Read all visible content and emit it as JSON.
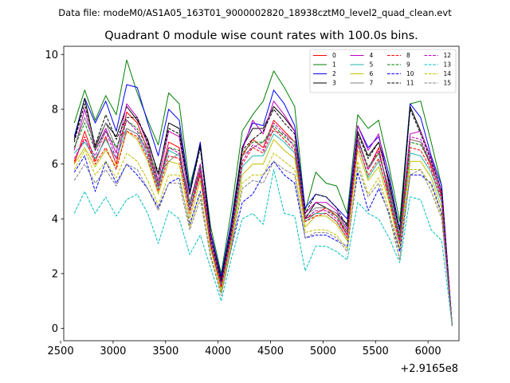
{
  "subtitle": "Data file: modeM0/AS1A05_163T01_9000002820_18938cztM0_level2_quad_clean.evt",
  "chart_data": {
    "type": "line",
    "title": "Quadrant 0 module wise count rates with 100.0s bins.",
    "xlabel": "",
    "ylabel": "",
    "x_offset_label": "+2.9165e8",
    "xlim": [
      2530,
      6295
    ],
    "ylim": [
      -0.45,
      10.3
    ],
    "xticks": [
      2500,
      3000,
      3500,
      4000,
      4500,
      5000,
      5500,
      6000
    ],
    "yticks": [
      0,
      2,
      4,
      6,
      8,
      10
    ],
    "legend_location": "upper-right",
    "legend_columns": 4,
    "x": [
      2630,
      2730,
      2830,
      2930,
      3030,
      3130,
      3230,
      3330,
      3430,
      3530,
      3630,
      3730,
      3830,
      3930,
      4030,
      4130,
      4230,
      4330,
      4430,
      4530,
      4630,
      4730,
      4830,
      4930,
      5030,
      5130,
      5230,
      5330,
      5430,
      5530,
      5630,
      5730,
      5830,
      5930,
      6030,
      6130,
      6230
    ],
    "series": [
      {
        "name": "0",
        "color": "#ff0000",
        "dash": "solid",
        "values": [
          6.0,
          7.2,
          6.1,
          7.0,
          6.0,
          7.9,
          7.5,
          6.5,
          5.2,
          6.8,
          6.6,
          4.3,
          5.7,
          3.2,
          1.6,
          3.5,
          6.3,
          6.9,
          6.6,
          7.6,
          7.2,
          6.8,
          4.0,
          4.2,
          4.4,
          4.1,
          3.4,
          6.9,
          5.8,
          6.6,
          4.8,
          3.2,
          6.9,
          6.8,
          5.9,
          4.9,
          0.1
        ]
      },
      {
        "name": "1",
        "color": "#008000",
        "dash": "solid",
        "values": [
          7.5,
          8.7,
          7.6,
          8.5,
          7.8,
          9.8,
          8.6,
          7.6,
          6.7,
          8.6,
          8.2,
          5.2,
          6.7,
          3.7,
          2.0,
          4.4,
          7.2,
          7.8,
          8.3,
          9.4,
          8.8,
          8.1,
          4.3,
          5.7,
          5.3,
          5.2,
          4.2,
          7.8,
          7.3,
          7.6,
          5.9,
          3.9,
          8.2,
          8.3,
          6.8,
          5.2,
          0.1
        ]
      },
      {
        "name": "2",
        "color": "#0000ff",
        "dash": "solid",
        "values": [
          7.0,
          8.4,
          7.5,
          8.3,
          7.2,
          8.9,
          8.8,
          7.5,
          6.3,
          8.0,
          7.6,
          5.0,
          6.8,
          3.5,
          1.9,
          4.0,
          6.6,
          7.5,
          7.4,
          8.7,
          8.2,
          7.4,
          4.4,
          4.9,
          4.8,
          4.4,
          4.0,
          7.4,
          6.6,
          7.0,
          5.6,
          3.6,
          8.2,
          7.7,
          6.3,
          5.2,
          0.1
        ]
      },
      {
        "name": "3",
        "color": "#000000",
        "dash": "solid",
        "values": [
          6.9,
          8.4,
          6.6,
          7.5,
          7.0,
          8.1,
          7.6,
          6.9,
          5.6,
          7.5,
          7.3,
          4.9,
          6.7,
          3.4,
          1.8,
          3.8,
          6.6,
          7.3,
          7.3,
          8.1,
          7.7,
          7.2,
          4.0,
          4.6,
          4.4,
          4.2,
          3.8,
          7.2,
          6.3,
          6.8,
          5.4,
          3.4,
          8.1,
          7.2,
          6.2,
          5.0,
          0.1
        ]
      },
      {
        "name": "4",
        "color": "#bf00bf",
        "dash": "solid",
        "values": [
          6.5,
          8.0,
          6.5,
          7.3,
          6.4,
          8.2,
          7.7,
          6.7,
          5.4,
          7.2,
          7.0,
          4.6,
          6.0,
          3.4,
          1.7,
          3.7,
          6.5,
          7.6,
          7.1,
          8.3,
          7.8,
          7.2,
          4.2,
          4.6,
          4.6,
          4.3,
          3.6,
          7.4,
          6.5,
          7.1,
          5.2,
          3.4,
          7.1,
          7.2,
          6.2,
          5.0,
          0.1
        ]
      },
      {
        "name": "5",
        "color": "#20b2aa",
        "dash": "solid",
        "values": [
          6.4,
          6.8,
          6.2,
          6.9,
          6.2,
          7.3,
          7.1,
          6.3,
          5.1,
          6.5,
          6.3,
          4.3,
          5.6,
          3.0,
          1.5,
          3.3,
          5.9,
          6.3,
          6.3,
          7.1,
          6.8,
          6.4,
          3.9,
          4.2,
          4.2,
          3.9,
          3.3,
          6.8,
          5.5,
          6.1,
          4.8,
          3.1,
          6.4,
          6.3,
          5.7,
          4.6,
          0.1
        ]
      },
      {
        "name": "6",
        "color": "#bfbf00",
        "dash": "solid",
        "values": [
          6.0,
          6.6,
          5.9,
          6.5,
          5.9,
          7.2,
          6.9,
          6.1,
          4.9,
          6.1,
          6.0,
          4.0,
          5.4,
          2.9,
          1.4,
          3.2,
          5.6,
          6.0,
          6.0,
          6.9,
          6.5,
          6.2,
          3.7,
          4.1,
          4.1,
          3.8,
          3.2,
          6.5,
          5.4,
          5.9,
          4.6,
          2.9,
          6.1,
          6.1,
          5.5,
          4.4,
          0.1
        ]
      },
      {
        "name": "7",
        "color": "#808080",
        "dash": "solid",
        "values": [
          6.6,
          7.7,
          6.7,
          7.5,
          6.6,
          7.3,
          7.1,
          6.5,
          5.6,
          6.1,
          6.4,
          4.6,
          5.8,
          3.2,
          1.6,
          3.5,
          6.3,
          6.6,
          6.8,
          7.2,
          7.1,
          6.8,
          4.1,
          4.4,
          4.4,
          4.2,
          3.5,
          7.0,
          5.8,
          6.4,
          5.1,
          3.4,
          6.9,
          6.8,
          6.0,
          4.8,
          0.1
        ]
      },
      {
        "name": "8",
        "color": "#ff0000",
        "dash": "dashed",
        "values": [
          6.1,
          7.0,
          6.0,
          6.6,
          5.8,
          7.2,
          7.0,
          6.2,
          5.0,
          6.3,
          6.2,
          4.2,
          5.6,
          3.0,
          1.5,
          3.4,
          6.0,
          6.6,
          6.4,
          7.3,
          6.9,
          6.5,
          3.9,
          4.1,
          4.2,
          3.9,
          3.3,
          6.7,
          5.6,
          6.2,
          4.7,
          3.1,
          6.6,
          6.5,
          5.8,
          4.7,
          0.1
        ]
      },
      {
        "name": "9",
        "color": "#008000",
        "dash": "dashed",
        "values": [
          6.6,
          7.5,
          6.5,
          7.2,
          6.6,
          7.6,
          7.3,
          6.6,
          5.3,
          6.6,
          6.5,
          4.5,
          5.9,
          3.1,
          1.6,
          3.6,
          6.4,
          6.8,
          6.8,
          7.4,
          7.0,
          6.7,
          4.0,
          4.3,
          4.3,
          4.1,
          3.5,
          6.9,
          5.9,
          6.4,
          5.0,
          3.3,
          6.8,
          6.7,
          6.0,
          4.8,
          0.1
        ]
      },
      {
        "name": "10",
        "color": "#0000ff",
        "dash": "dashed",
        "values": [
          5.7,
          6.3,
          5.0,
          6.1,
          5.3,
          6.0,
          5.6,
          5.1,
          4.4,
          5.3,
          5.5,
          3.8,
          5.0,
          2.6,
          1.3,
          3.0,
          4.6,
          4.9,
          5.6,
          6.1,
          5.6,
          5.3,
          3.3,
          3.4,
          3.4,
          3.2,
          3.0,
          5.7,
          4.3,
          5.1,
          4.2,
          2.8,
          5.6,
          5.6,
          5.3,
          4.2,
          0.1
        ]
      },
      {
        "name": "11",
        "color": "#000000",
        "dash": "dashed",
        "values": [
          6.8,
          8.2,
          6.7,
          7.8,
          6.9,
          7.7,
          7.7,
          6.8,
          5.7,
          7.3,
          7.1,
          4.9,
          6.6,
          3.3,
          1.7,
          3.7,
          6.5,
          6.9,
          7.2,
          8.0,
          7.5,
          7.1,
          4.2,
          4.9,
          4.8,
          4.4,
          3.7,
          7.1,
          6.2,
          6.8,
          5.3,
          3.6,
          8.0,
          7.1,
          6.1,
          5.0,
          0.1
        ]
      },
      {
        "name": "12",
        "color": "#bf00bf",
        "dash": "dashed",
        "values": [
          6.2,
          6.9,
          6.3,
          7.2,
          6.2,
          7.6,
          7.2,
          6.4,
          5.2,
          6.6,
          6.4,
          4.4,
          5.8,
          3.1,
          1.6,
          3.5,
          6.1,
          6.7,
          6.5,
          7.5,
          7.1,
          6.6,
          4.0,
          4.3,
          4.3,
          4.0,
          3.4,
          6.9,
          5.8,
          6.5,
          4.9,
          3.2,
          7.0,
          6.9,
          6.0,
          4.8,
          0.1
        ]
      },
      {
        "name": "13",
        "color": "#00bfbf",
        "dash": "dashed",
        "values": [
          4.2,
          5.0,
          4.2,
          4.8,
          4.1,
          4.7,
          4.9,
          4.2,
          3.1,
          4.3,
          4.0,
          2.7,
          3.4,
          2.2,
          1.0,
          2.6,
          4.0,
          4.2,
          3.8,
          5.8,
          4.2,
          4.1,
          2.1,
          3.0,
          3.0,
          2.8,
          2.5,
          4.6,
          4.2,
          4.0,
          3.3,
          2.4,
          4.8,
          4.7,
          3.6,
          3.2,
          0.1
        ]
      },
      {
        "name": "14",
        "color": "#bfbf00",
        "dash": "dashed",
        "values": [
          5.8,
          6.5,
          5.6,
          6.1,
          5.5,
          6.4,
          6.1,
          5.4,
          4.5,
          5.6,
          5.6,
          3.7,
          4.9,
          2.7,
          1.3,
          3.1,
          5.3,
          5.6,
          5.6,
          6.4,
          6.1,
          5.8,
          3.5,
          3.6,
          3.6,
          3.4,
          2.9,
          6.1,
          4.9,
          5.5,
          4.3,
          2.5,
          5.8,
          5.8,
          5.2,
          4.1,
          0.1
        ]
      },
      {
        "name": "15",
        "color": "#808080",
        "dash": "dashed",
        "values": [
          5.4,
          6.0,
          5.3,
          5.8,
          5.2,
          6.0,
          5.8,
          5.1,
          4.3,
          5.3,
          5.3,
          3.6,
          4.7,
          2.6,
          1.2,
          3.0,
          5.1,
          5.4,
          5.3,
          6.1,
          5.8,
          5.6,
          3.3,
          3.5,
          3.5,
          3.3,
          2.8,
          5.9,
          4.8,
          5.3,
          4.1,
          2.5,
          5.6,
          5.8,
          5.0,
          4.0,
          0.1
        ]
      }
    ]
  }
}
